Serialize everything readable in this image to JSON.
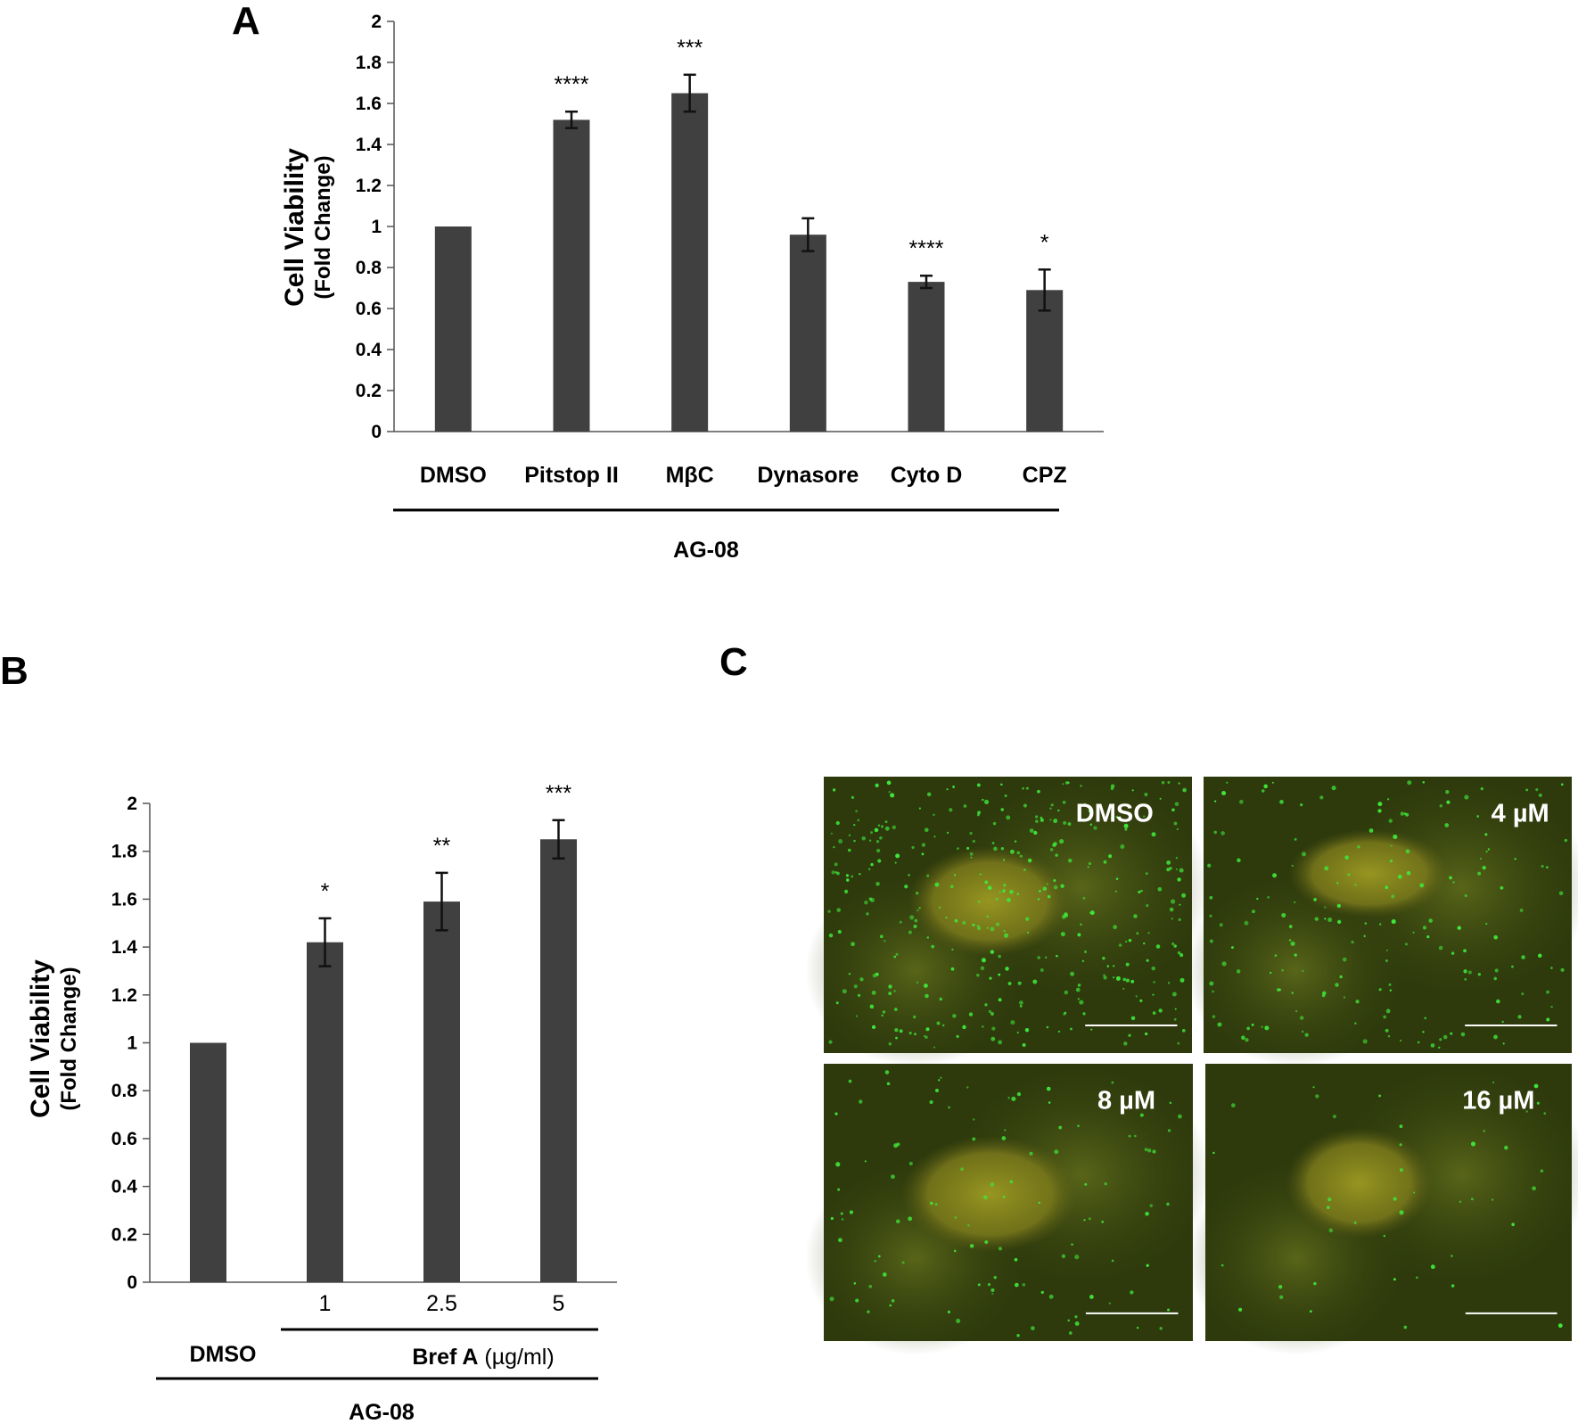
{
  "panels": {
    "a": {
      "letter": "A",
      "ylabel": "Cell Viability",
      "ylabel_sub": "(Fold Change)",
      "group_label": "AG-08"
    },
    "b": {
      "letter": "B",
      "ylabel": "Cell Viability",
      "ylabel_sub": "(Fold Change)",
      "dmso_label": "DMSO",
      "bref_label": "Bref A",
      "bref_unit": " (µg/ml)",
      "group_label": "AG-08"
    },
    "c": {
      "letter": "C",
      "images": [
        {
          "label": "DMSO"
        },
        {
          "label": "4 µM"
        },
        {
          "label": "8 µM"
        },
        {
          "label": "16 µM"
        }
      ]
    }
  },
  "colors": {
    "bar": "#404040",
    "axis": "#555555",
    "error_bar": "#111111",
    "micrograph_bg": "#2e3a0c",
    "nucleus": "#8a8a1e",
    "puncta": "#3ee83a",
    "scale_bar": "#ffffff"
  },
  "chart_data": [
    {
      "type": "bar",
      "panel": "A",
      "categories": [
        "DMSO",
        "Pitstop II",
        "MβC",
        "Dynasore",
        "Cyto D",
        "CPZ"
      ],
      "values": [
        1.0,
        1.52,
        1.65,
        0.96,
        0.73,
        0.69
      ],
      "errors": [
        0,
        0.04,
        0.09,
        0.08,
        0.03,
        0.1
      ],
      "significance": [
        "",
        "****",
        "***",
        "",
        "****",
        "*"
      ],
      "ylim": [
        0,
        2
      ],
      "yticks": [
        "0",
        "0.2",
        "0.4",
        "0.6",
        "0.8",
        "1",
        "1.2",
        "1.4",
        "1.6",
        "1.8",
        "2"
      ],
      "grid": false,
      "legend": "none"
    },
    {
      "type": "bar",
      "panel": "B",
      "categories": [
        "DMSO",
        "1",
        "2.5",
        "5"
      ],
      "tick_labels": [
        "",
        "1",
        "2.5",
        "5"
      ],
      "values": [
        1.0,
        1.42,
        1.59,
        1.85
      ],
      "errors": [
        0,
        0.1,
        0.12,
        0.08
      ],
      "significance": [
        "",
        "*",
        "**",
        "***"
      ],
      "ylim": [
        0,
        2
      ],
      "yticks": [
        "0",
        "0.2",
        "0.4",
        "0.6",
        "0.8",
        "1",
        "1.2",
        "1.4",
        "1.6",
        "1.8",
        "2"
      ],
      "grid": false,
      "legend": "none"
    }
  ]
}
